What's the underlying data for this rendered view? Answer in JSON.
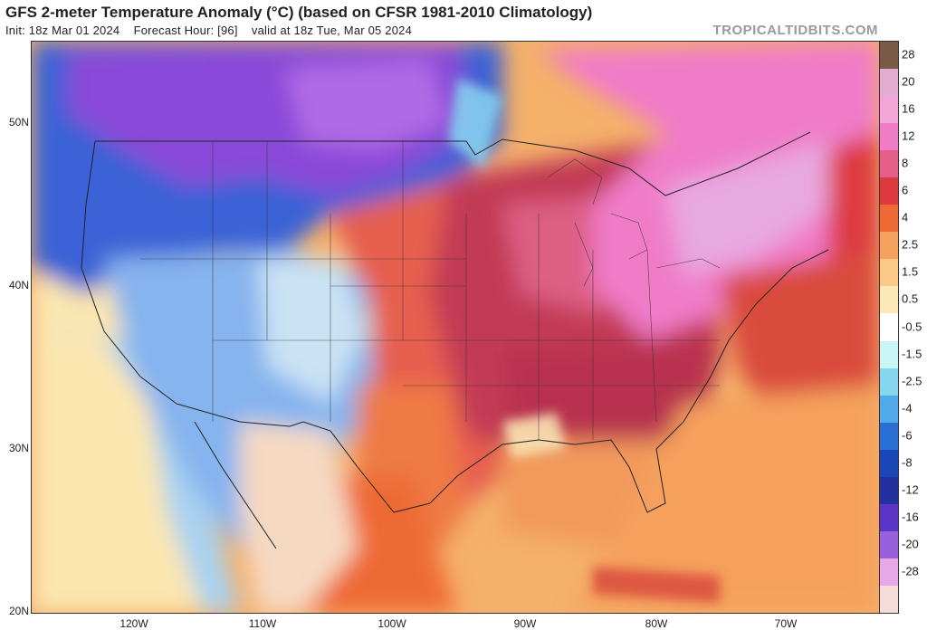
{
  "header": {
    "title": "GFS 2-meter Temperature Anomaly (°C) (based on CFSR 1981-2010 Climatology)",
    "init": "Init: 18z Mar 01 2024",
    "forecast_hour": "Forecast Hour: [96]",
    "valid": "valid at 18z Tue, Mar 05 2024",
    "watermark": "TROPICALTIDBITS.COM"
  },
  "map": {
    "lat_labels": [
      "50N",
      "40N",
      "30N",
      "20N"
    ],
    "lon_labels": [
      "120W",
      "110W",
      "100W",
      "90W",
      "80W",
      "70W"
    ],
    "colors": {
      "strong_cold": "#7d3fd0",
      "cold": "#3a62d6",
      "cool": "#86b4ee",
      "near_normal_warm": "#fbe6b0",
      "warm": "#f5b06a",
      "very_warm": "#d94b3c",
      "hot": "#c23a55",
      "extreme": "#f07cc8"
    }
  },
  "colorbar": {
    "labels": [
      "28",
      "20",
      "16",
      "12",
      "8",
      "6",
      "4",
      "2.5",
      "1.5",
      "0.5",
      "-0.5",
      "-1.5",
      "-2.5",
      "-4",
      "-6",
      "-8",
      "-12",
      "-16",
      "-20",
      "-28"
    ],
    "colors": [
      "#7a5a44",
      "#e3aad2",
      "#f2a5d6",
      "#f07cc8",
      "#e65e8a",
      "#dd3a3f",
      "#ee6a35",
      "#f5a15d",
      "#fbc987",
      "#fde9b8",
      "#ffffff",
      "#c9f5f6",
      "#86d6f0",
      "#4fa9ea",
      "#2a6fd6",
      "#1b46b8",
      "#2430a0",
      "#5a35c8",
      "#9860dd",
      "#e8a8e8",
      "#f6dcd8"
    ]
  }
}
